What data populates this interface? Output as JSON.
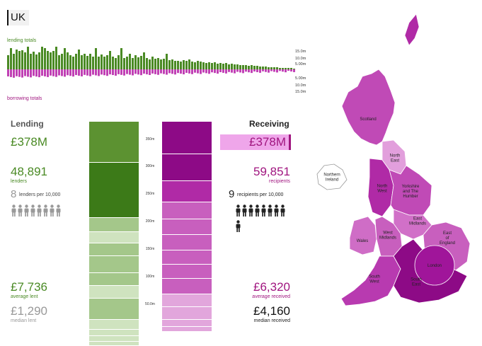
{
  "region_title": "UK",
  "sparkline": {
    "lending_label": "lending totals",
    "borrowing_label": "borrowing totals",
    "up_scale": [
      "15.0m",
      "10.0m",
      "5.00m"
    ],
    "down_scale": [
      "5.00m",
      "10.0m",
      "15.0m"
    ]
  },
  "lending": {
    "heading": "Lending",
    "total": "£378M",
    "count": "48,891",
    "count_label": "lenders",
    "per_number": "8",
    "per_label": "lenders per 10,000",
    "average": "£7,736",
    "average_label": "average lent",
    "median": "£1,290",
    "median_label": "median lent"
  },
  "receiving": {
    "heading": "Receiving",
    "total": "£378M",
    "count": "59,851",
    "count_label": "recipients",
    "per_number": "9",
    "per_label": "recipients per 10,000",
    "average": "£6,320",
    "average_label": "average received",
    "median": "£4,160",
    "median_label": "median received"
  },
  "axis_ticks": [
    "350m",
    "300m",
    "250m",
    "200m",
    "150m",
    "100m",
    "50.0m"
  ],
  "map_labels": {
    "scotland": "Scotland",
    "north_east": "North East",
    "north_west": "North West",
    "yorkshire": "Yorkshire and The Humber",
    "northern_ireland": "Northern Ireland",
    "east_midlands": "East Midlands",
    "wales": "Wales",
    "west_midlands": "West Midlands",
    "east_of_england": "East of England",
    "london": "London",
    "south_west": "South West",
    "south_east": "South East"
  },
  "colors": {
    "lending_dark": "#3c7a18",
    "lending_mid": "#5c9231",
    "lending_light": "#a4c78a",
    "lending_lighter": "#cfe3bf",
    "receiving_dark": "#8d0a86",
    "receiving_mid": "#b02aa6",
    "receiving_light": "#c85fbe",
    "receiving_lighter": "#e2a6dc"
  }
}
